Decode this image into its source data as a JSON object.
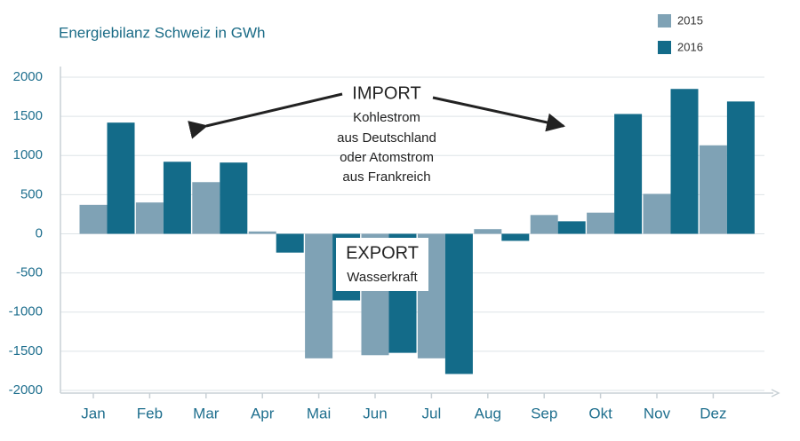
{
  "chart_data": {
    "type": "bar",
    "title": "Energiebilanz Schweiz in GWh",
    "categories": [
      "Jan",
      "Feb",
      "Mar",
      "Apr",
      "Mai",
      "Jun",
      "Jul",
      "Aug",
      "Sep",
      "Okt",
      "Nov",
      "Dez"
    ],
    "series": [
      {
        "name": "2015",
        "color": "#7fa2b5",
        "values": [
          370,
          400,
          660,
          30,
          -1590,
          -1550,
          -1590,
          60,
          240,
          270,
          510,
          1130
        ]
      },
      {
        "name": "2016",
        "color": "#136b89",
        "values": [
          1420,
          920,
          910,
          -240,
          -850,
          -1520,
          -1790,
          -90,
          160,
          1530,
          1850,
          1690
        ]
      }
    ],
    "ylim": [
      -2000,
      2000
    ],
    "yticks": [
      2000,
      1500,
      1000,
      500,
      0,
      -500,
      -1000,
      -1500,
      -2000
    ],
    "grid": true,
    "legend": "top-right",
    "annotations": [
      {
        "title": "IMPORT",
        "lines": [
          "Kohlestrom",
          "aus Deutschland",
          "oder Atomstrom",
          "aus Frankreich"
        ]
      },
      {
        "title": "EXPORT",
        "lines": [
          "Wasserkraft"
        ]
      }
    ]
  }
}
